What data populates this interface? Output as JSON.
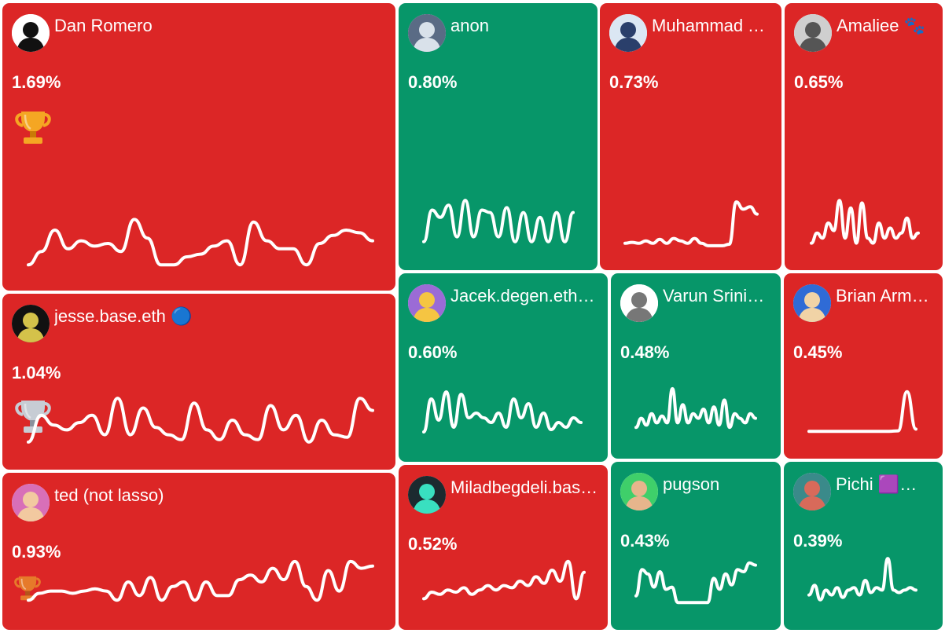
{
  "colors": {
    "down": "#dc2626",
    "up": "#079669"
  },
  "tiles": [
    {
      "name": "Dan Romero",
      "pct": "1.69%",
      "trend": "down",
      "trophy": "gold",
      "avatar_icon": "pirate-avatar-icon",
      "avatar_bg": "#ffffff",
      "avatar_fg": "#111111",
      "spark": [
        0.1,
        0.35,
        0.75,
        0.4,
        0.55,
        0.45,
        0.5,
        0.35,
        0.95,
        0.6,
        0.1,
        0.1,
        0.25,
        0.3,
        0.45,
        0.55,
        0.1,
        0.9,
        0.55,
        0.4,
        0.4,
        0.1,
        0.5,
        0.65,
        0.75,
        0.7,
        0.55
      ]
    },
    {
      "name": "anon",
      "pct": "0.80%",
      "trend": "up",
      "trophy": "",
      "avatar_icon": "wolf-avatar-icon",
      "avatar_bg": "#5a6b85",
      "avatar_fg": "#d9e1ea",
      "spark": [
        0.1,
        0.75,
        0.6,
        0.85,
        0.2,
        0.95,
        0.2,
        0.75,
        0.7,
        0.2,
        0.8,
        0.1,
        0.7,
        0.1,
        0.6,
        0.1,
        0.7,
        0.1,
        0.7
      ]
    },
    {
      "name": "Muhammad Yasi…",
      "pct": "0.73%",
      "trend": "down",
      "trophy": "",
      "avatar_icon": "man-suit-avatar-icon",
      "avatar_bg": "#dbe7f3",
      "avatar_fg": "#2a3f6b",
      "spark": [
        0.1,
        0.12,
        0.1,
        0.15,
        0.1,
        0.18,
        0.1,
        0.2,
        0.15,
        0.1,
        0.2,
        0.1,
        0.05,
        0.05,
        0.05,
        0.08,
        0.95,
        0.8,
        0.85,
        0.7
      ]
    },
    {
      "name": "Amaliee 🐾",
      "pct": "0.65%",
      "trend": "down",
      "trophy": "",
      "avatar_icon": "anime-girl-avatar-icon",
      "avatar_bg": "#cfcfcf",
      "avatar_fg": "#555555",
      "spark": [
        0.1,
        0.3,
        0.2,
        0.5,
        0.35,
        0.95,
        0.2,
        0.8,
        0.1,
        0.9,
        0.2,
        0.1,
        0.5,
        0.2,
        0.4,
        0.2,
        0.3,
        0.6,
        0.2,
        0.3
      ]
    },
    {
      "name": "jesse.base.eth 🔵",
      "pct": "1.04%",
      "trend": "down",
      "trophy": "silver",
      "avatar_icon": "pixel-avatar-icon",
      "avatar_bg": "#111111",
      "avatar_fg": "#d4c24a",
      "spark": [
        0.05,
        0.6,
        0.4,
        0.3,
        0.45,
        0.6,
        0.2,
        0.95,
        0.2,
        0.75,
        0.35,
        0.2,
        0.1,
        0.85,
        0.3,
        0.1,
        0.5,
        0.2,
        0.1,
        0.8,
        0.3,
        0.6,
        0.05,
        0.5,
        0.2,
        0.15,
        0.95,
        0.7
      ]
    },
    {
      "name": "Jacek.degen.eth 🎩",
      "pct": "0.60%",
      "trend": "up",
      "trophy": "",
      "avatar_icon": "penguin-avatar-icon",
      "avatar_bg": "#9b6bd6",
      "avatar_fg": "#f5c542",
      "spark": [
        0.1,
        0.8,
        0.35,
        0.95,
        0.2,
        0.9,
        0.4,
        0.5,
        0.4,
        0.3,
        0.5,
        0.2,
        0.8,
        0.4,
        0.7,
        0.2,
        0.5,
        0.15,
        0.3,
        0.2,
        0.4,
        0.3
      ]
    },
    {
      "name": "Varun Srinivasan",
      "pct": "0.48%",
      "trend": "up",
      "trophy": "",
      "avatar_icon": "mask-avatar-icon",
      "avatar_bg": "#ffffff",
      "avatar_fg": "#777777",
      "spark": [
        0.1,
        0.3,
        0.15,
        0.4,
        0.2,
        0.35,
        0.2,
        0.95,
        0.2,
        0.6,
        0.2,
        0.4,
        0.3,
        0.5,
        0.2,
        0.55,
        0.15,
        0.7,
        0.1,
        0.4,
        0.3,
        0.2,
        0.4,
        0.3
      ]
    },
    {
      "name": "Brian Armstrong",
      "pct": "0.45%",
      "trend": "down",
      "trophy": "",
      "avatar_icon": "punk-avatar-icon",
      "avatar_bg": "#2f6bd6",
      "avatar_fg": "#f1d3a6",
      "spark": [
        0.05,
        0.05,
        0.05,
        0.05,
        0.05,
        0.05,
        0.05,
        0.05,
        0.05,
        0.05,
        0.06,
        0.95,
        0.1
      ]
    },
    {
      "name": "ted (not lasso)",
      "pct": "0.93%",
      "trend": "down",
      "trophy": "bronze",
      "avatar_icon": "girl-avatar-icon",
      "avatar_bg": "#d86fb8",
      "avatar_fg": "#f2c9a0",
      "spark": [
        0.1,
        0.25,
        0.3,
        0.3,
        0.25,
        0.3,
        0.35,
        0.3,
        0.1,
        0.5,
        0.2,
        0.6,
        0.1,
        0.4,
        0.5,
        0.1,
        0.5,
        0.2,
        0.2,
        0.55,
        0.65,
        0.5,
        0.8,
        0.55,
        0.95,
        0.4,
        0.1,
        0.75,
        0.3,
        0.95,
        0.8,
        0.85
      ]
    },
    {
      "name": "Miladbegdeli.base.eth",
      "pct": "0.52%",
      "trend": "down",
      "trophy": "",
      "avatar_icon": "glasses-avatar-icon",
      "avatar_bg": "#1c2a2f",
      "avatar_fg": "#39e0c0",
      "spark": [
        0.1,
        0.25,
        0.2,
        0.3,
        0.25,
        0.35,
        0.2,
        0.3,
        0.4,
        0.3,
        0.4,
        0.35,
        0.5,
        0.4,
        0.6,
        0.45,
        0.75,
        0.5,
        0.95,
        0.1,
        0.7
      ]
    },
    {
      "name": "pugson",
      "pct": "0.43%",
      "trend": "up",
      "trophy": "",
      "avatar_icon": "face-avatar-icon",
      "avatar_bg": "#3fcf6a",
      "avatar_fg": "#e7b58c",
      "spark": [
        0.2,
        0.8,
        0.7,
        0.4,
        0.75,
        0.35,
        0.4,
        0.05,
        0.05,
        0.05,
        0.05,
        0.05,
        0.05,
        0.6,
        0.35,
        0.7,
        0.45,
        0.8,
        0.75,
        0.95,
        0.9
      ]
    },
    {
      "name": "Pichi 🟪🟪🟪",
      "pct": "0.39%",
      "trend": "up",
      "trophy": "",
      "avatar_icon": "creature-avatar-icon",
      "avatar_bg": "#3a8a8a",
      "avatar_fg": "#d86a5a",
      "spark": [
        0.2,
        0.4,
        0.1,
        0.3,
        0.2,
        0.35,
        0.15,
        0.3,
        0.35,
        0.2,
        0.5,
        0.25,
        0.35,
        0.3,
        0.95,
        0.3,
        0.25,
        0.3,
        0.35,
        0.3
      ]
    }
  ]
}
